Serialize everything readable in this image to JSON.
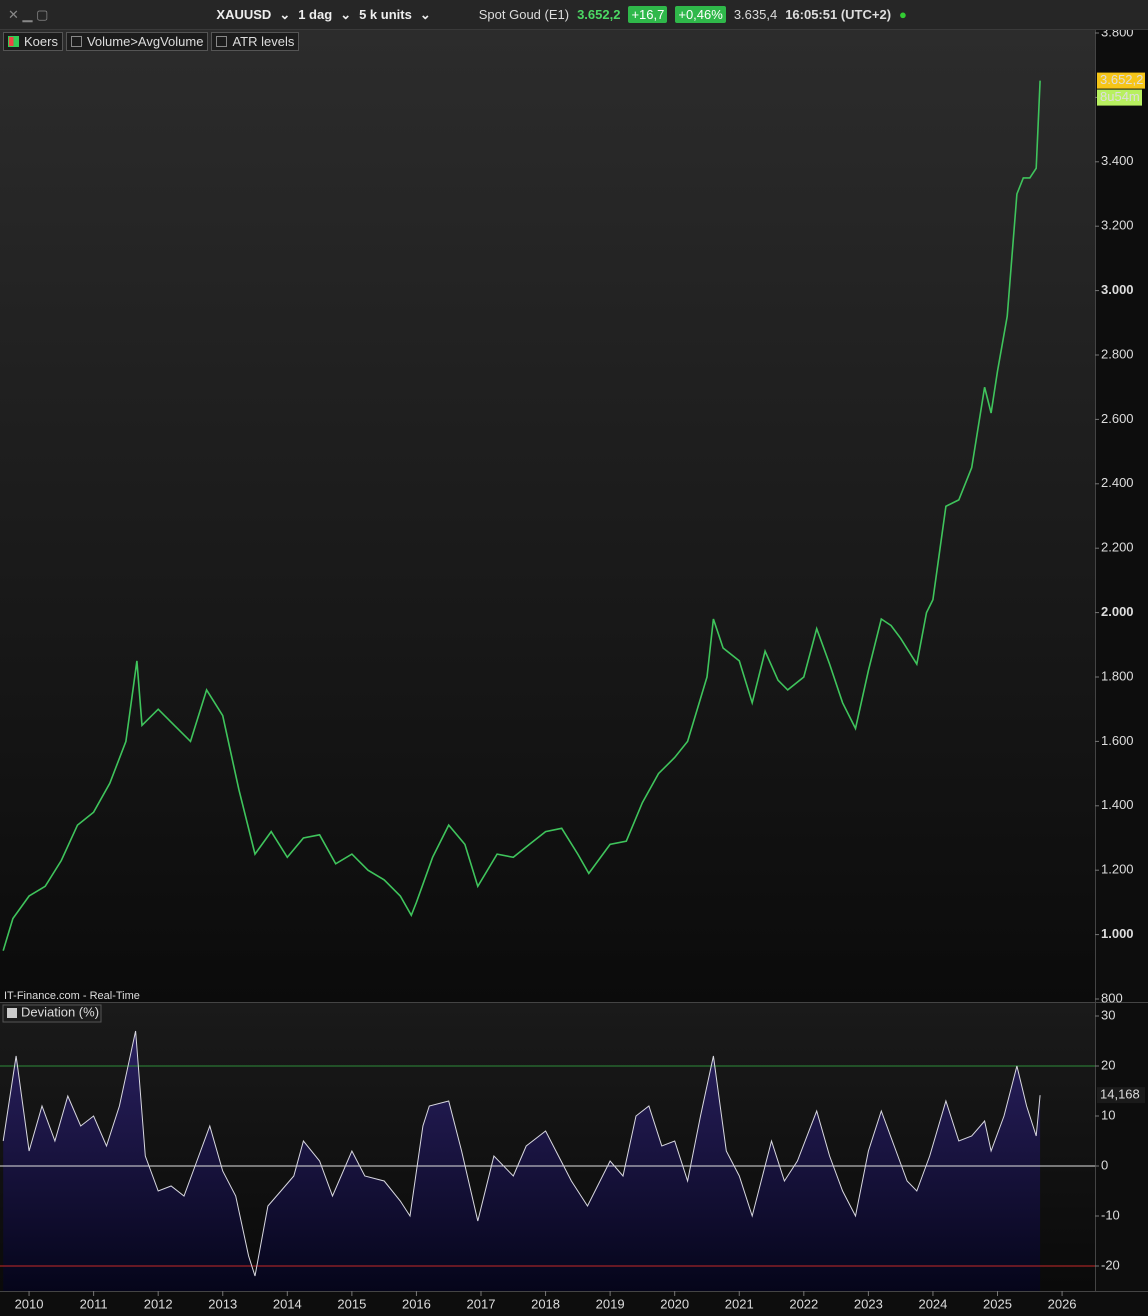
{
  "toolbar": {
    "symbol": "XAUUSD",
    "interval": "1 dag",
    "units": "5 k units",
    "instrument": "Spot Goud (E1)",
    "last": "3.652,2",
    "change": "+16,7",
    "change_pct": "+0,46%",
    "previous": "3.635,4",
    "time": "16:05:51 (UTC+2)"
  },
  "legend": {
    "price": "Koers",
    "volume": "Volume>AvgVolume",
    "atr": "ATR levels"
  },
  "source": "IT-Finance.com - Real-Time",
  "chart_data": [
    {
      "type": "line",
      "x": [
        2009.6,
        2009.75,
        2010.0,
        2010.25,
        2010.5,
        2010.75,
        2011.0,
        2011.25,
        2011.5,
        2011.67,
        2011.75,
        2012.0,
        2012.25,
        2012.5,
        2012.75,
        2013.0,
        2013.25,
        2013.5,
        2013.75,
        2014.0,
        2014.25,
        2014.5,
        2014.75,
        2015.0,
        2015.25,
        2015.5,
        2015.75,
        2015.92,
        2016.0,
        2016.25,
        2016.5,
        2016.75,
        2016.95,
        2017.25,
        2017.5,
        2017.75,
        2018.0,
        2018.25,
        2018.5,
        2018.67,
        2019.0,
        2019.25,
        2019.5,
        2019.75,
        2020.0,
        2020.2,
        2020.5,
        2020.6,
        2020.75,
        2021.0,
        2021.2,
        2021.4,
        2021.6,
        2021.75,
        2022.0,
        2022.2,
        2022.4,
        2022.6,
        2022.8,
        2023.0,
        2023.2,
        2023.35,
        2023.5,
        2023.75,
        2023.9,
        2024.0,
        2024.2,
        2024.4,
        2024.6,
        2024.8,
        2024.9,
        2025.0,
        2025.15,
        2025.3,
        2025.4,
        2025.5,
        2025.6,
        2025.66
      ],
      "series": [
        {
          "name": "Koers",
          "color": "#3fc45c",
          "values": [
            950,
            1050,
            1120,
            1150,
            1230,
            1340,
            1380,
            1470,
            1600,
            1850,
            1650,
            1700,
            1650,
            1600,
            1760,
            1680,
            1450,
            1250,
            1320,
            1240,
            1300,
            1310,
            1220,
            1250,
            1200,
            1170,
            1120,
            1060,
            1100,
            1240,
            1340,
            1280,
            1150,
            1250,
            1240,
            1280,
            1320,
            1330,
            1250,
            1190,
            1280,
            1290,
            1410,
            1500,
            1550,
            1600,
            1800,
            1980,
            1890,
            1850,
            1720,
            1880,
            1790,
            1760,
            1800,
            1950,
            1840,
            1720,
            1640,
            1820,
            1980,
            1960,
            1920,
            1840,
            2000,
            2040,
            2330,
            2350,
            2450,
            2700,
            2620,
            2750,
            2920,
            3300,
            3350,
            3350,
            3380,
            3652.2
          ],
          "value_labels": [
            null,
            null,
            null,
            null,
            null,
            null,
            null,
            null,
            null,
            null,
            null,
            null,
            null,
            null,
            null,
            null,
            null,
            null,
            null,
            null,
            null,
            null,
            null,
            null,
            null,
            null,
            null,
            null,
            null,
            null,
            null,
            null,
            null,
            null,
            null,
            null,
            null,
            null,
            null,
            null,
            null,
            null,
            null,
            null,
            null,
            null,
            null,
            null,
            null,
            null,
            null,
            null,
            null,
            null,
            null,
            null,
            null,
            null,
            null,
            null,
            null,
            null,
            null,
            null,
            null,
            null,
            null,
            null,
            null,
            null,
            null,
            null,
            null,
            null,
            null,
            null,
            null,
            "3.652,2"
          ]
        }
      ],
      "countdown": "8u54m",
      "xlim": [
        2009.55,
        2026.51
      ],
      "xticks": [
        2010,
        2011,
        2012,
        2013,
        2014,
        2015,
        2016,
        2017,
        2018,
        2019,
        2020,
        2021,
        2022,
        2023,
        2024,
        2025,
        2026
      ],
      "ylim": [
        800,
        3800
      ],
      "yticks": [
        800,
        {
          "value": 1000,
          "label": "1.000"
        },
        {
          "value": 1200,
          "label": "1.200"
        },
        {
          "value": 1400,
          "label": "1.400"
        },
        {
          "value": 1600,
          "label": "1.600"
        },
        {
          "value": 1800,
          "label": "1.800"
        },
        {
          "value": 2000,
          "label": "2.000"
        },
        {
          "value": 2200,
          "label": "2.200"
        },
        {
          "value": 2400,
          "label": "2.400"
        },
        {
          "value": 2600,
          "label": "2.600"
        },
        {
          "value": 2800,
          "label": "2.800"
        },
        {
          "value": 3000,
          "label": "3.000"
        },
        {
          "value": 3200,
          "label": "3.200"
        },
        {
          "value": 3400,
          "label": "3.400"
        },
        {
          "value": 3600,
          "label": "3.600"
        },
        {
          "value": 3800,
          "label": "3.800"
        }
      ]
    },
    {
      "type": "area",
      "title": "Deviation (%)",
      "x": [
        2009.6,
        2009.8,
        2010.0,
        2010.2,
        2010.4,
        2010.6,
        2010.8,
        2011.0,
        2011.2,
        2011.4,
        2011.65,
        2011.8,
        2012.0,
        2012.2,
        2012.4,
        2012.6,
        2012.8,
        2013.0,
        2013.2,
        2013.4,
        2013.5,
        2013.7,
        2013.9,
        2014.1,
        2014.25,
        2014.5,
        2014.7,
        2015.0,
        2015.2,
        2015.5,
        2015.75,
        2015.9,
        2016.1,
        2016.2,
        2016.5,
        2016.7,
        2016.95,
        2017.2,
        2017.5,
        2017.7,
        2018.0,
        2018.2,
        2018.4,
        2018.65,
        2019.0,
        2019.2,
        2019.4,
        2019.6,
        2019.8,
        2020.0,
        2020.2,
        2020.4,
        2020.6,
        2020.8,
        2021.0,
        2021.2,
        2021.5,
        2021.7,
        2021.9,
        2022.2,
        2022.4,
        2022.6,
        2022.8,
        2023.0,
        2023.2,
        2023.4,
        2023.6,
        2023.75,
        2023.95,
        2024.2,
        2024.4,
        2024.6,
        2024.8,
        2024.9,
        2025.1,
        2025.3,
        2025.45,
        2025.6,
        2025.66
      ],
      "series": [
        {
          "name": "Deviation (%)",
          "color": "#d8d8e0",
          "values": [
            5,
            22,
            3,
            12,
            5,
            14,
            8,
            10,
            4,
            12,
            27,
            2,
            -5,
            -4,
            -6,
            1,
            8,
            -1,
            -6,
            -18,
            -22,
            -8,
            -5,
            -2,
            5,
            1,
            -6,
            3,
            -2,
            -3,
            -7,
            -10,
            8,
            12,
            13,
            3,
            -11,
            2,
            -2,
            4,
            7,
            2,
            -3,
            -8,
            1,
            -2,
            10,
            12,
            4,
            5,
            -3,
            10,
            22,
            3,
            -2,
            -10,
            5,
            -3,
            1,
            11,
            2,
            -5,
            -10,
            3,
            11,
            4,
            -3,
            -5,
            2,
            13,
            5,
            6,
            9,
            3,
            10,
            20,
            12,
            6,
            14.168
          ],
          "value_labels": [
            null,
            null,
            null,
            null,
            null,
            null,
            null,
            null,
            null,
            null,
            null,
            null,
            null,
            null,
            null,
            null,
            null,
            null,
            null,
            null,
            null,
            null,
            null,
            null,
            null,
            null,
            null,
            null,
            null,
            null,
            null,
            null,
            null,
            null,
            null,
            null,
            null,
            null,
            null,
            null,
            null,
            null,
            null,
            null,
            null,
            null,
            null,
            null,
            null,
            null,
            null,
            null,
            null,
            null,
            null,
            null,
            null,
            null,
            null,
            null,
            null,
            null,
            null,
            null,
            null,
            null,
            null,
            null,
            null,
            null,
            null,
            null,
            null,
            null,
            null,
            null,
            null,
            null,
            "14,168"
          ]
        }
      ],
      "xlim": [
        2009.55,
        2026.51
      ],
      "ylim": [
        -25,
        32
      ],
      "yticks": [
        -20,
        -10,
        0,
        10,
        20,
        30
      ],
      "hlines": [
        {
          "value": 20,
          "color": "#2e8b3a"
        },
        {
          "value": 0,
          "color": "#e0e0e0"
        },
        {
          "value": -20,
          "color": "#c62828"
        }
      ]
    }
  ]
}
